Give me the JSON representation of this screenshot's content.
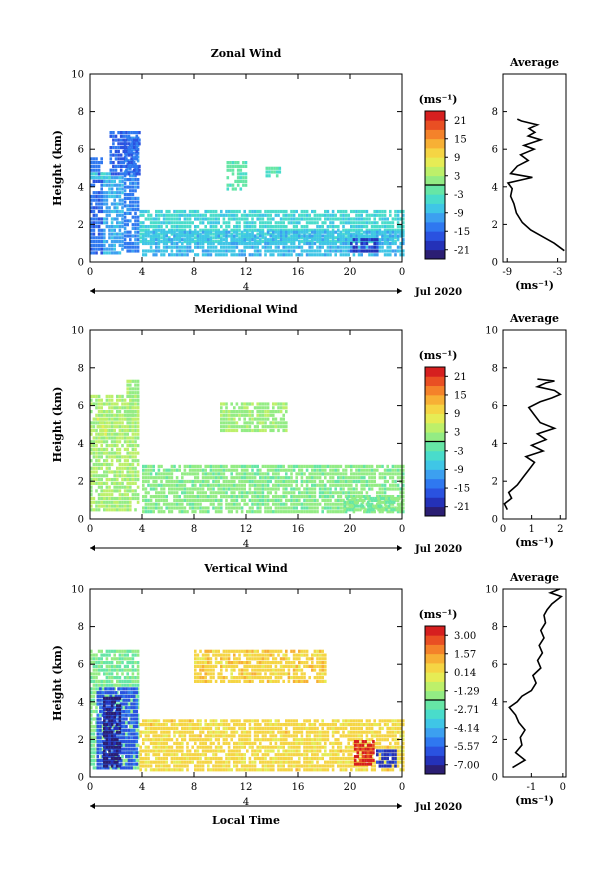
{
  "chart_data": [
    {
      "type": "heatmap",
      "title": "Zonal Wind",
      "ylabel": "Height (km)",
      "xlabel": "",
      "xlim": [
        0,
        24
      ],
      "ylim": [
        0,
        10
      ],
      "xticks": [
        "0",
        "4",
        "8",
        "12",
        "16",
        "20",
        "0"
      ],
      "yticks": [
        "0",
        "2",
        "4",
        "6",
        "8",
        "10"
      ],
      "date_scale_label": "4",
      "date_label": "Jul 2020",
      "colorbar": {
        "unit": "(ms⁻¹)",
        "ticks": [
          "21",
          "15",
          "9",
          "3",
          "-3",
          "-9",
          "-15",
          "-21"
        ],
        "min": -24,
        "max": 24
      },
      "regions": [
        {
          "x": [
            0.0,
            1.0
          ],
          "y": [
            0.4,
            5.6
          ],
          "value": -14
        },
        {
          "x": [
            1.0,
            2.6
          ],
          "y": [
            0.4,
            4.5
          ],
          "value": -10
        },
        {
          "x": [
            2.6,
            3.8
          ],
          "y": [
            0.5,
            6.6
          ],
          "value": -13
        },
        {
          "x": [
            1.5,
            3.9
          ],
          "y": [
            4.6,
            6.9
          ],
          "value": -15
        },
        {
          "x": [
            0.0,
            1.5
          ],
          "y": [
            4.4,
            4.7
          ],
          "value": -6
        },
        {
          "x": [
            3.8,
            24.0
          ],
          "y": [
            1.0,
            2.8
          ],
          "value": -5
        },
        {
          "x": [
            4.0,
            24.0
          ],
          "y": [
            0.3,
            1.5
          ],
          "value": -8
        },
        {
          "x": [
            10.5,
            12.0
          ],
          "y": [
            3.8,
            5.4
          ],
          "value": -2
        },
        {
          "x": [
            13.5,
            14.5
          ],
          "y": [
            4.5,
            5.0
          ],
          "value": -3
        },
        {
          "x": [
            20.0,
            22.0
          ],
          "y": [
            0.5,
            1.2
          ],
          "value": -19
        }
      ],
      "profile": {
        "title": "Average",
        "xlabel": "(ms⁻¹)",
        "ylabel": "",
        "xlim": [
          -9.5,
          -2
        ],
        "xticks": [
          "-9",
          "-3"
        ],
        "ylim": [
          0,
          10
        ],
        "yticks": [
          "0",
          "2",
          "4",
          "6",
          "8"
        ],
        "x": [
          -2.2,
          -3.4,
          -4.6,
          -6.2,
          -7.2,
          -7.9,
          -8.2,
          -8.6,
          -8.4,
          -8.9,
          -6.0,
          -8.6,
          -7.8,
          -6.5,
          -7.4,
          -5.8,
          -7.0,
          -5.0,
          -6.5,
          -5.7,
          -6.4,
          -5.4,
          -7.3,
          -7.8
        ],
        "y": [
          0.6,
          1.0,
          1.3,
          1.7,
          2.1,
          2.6,
          3.1,
          3.5,
          3.9,
          4.2,
          4.5,
          4.7,
          5.1,
          5.4,
          5.7,
          6.0,
          6.2,
          6.5,
          6.7,
          6.9,
          7.1,
          7.3,
          7.5,
          7.6
        ]
      }
    },
    {
      "type": "heatmap",
      "title": "Meridional Wind",
      "ylabel": "Height (km)",
      "xlabel": "",
      "xlim": [
        0,
        24
      ],
      "ylim": [
        0,
        10
      ],
      "xticks": [
        "0",
        "4",
        "8",
        "12",
        "16",
        "20",
        "0"
      ],
      "yticks": [
        "0",
        "2",
        "4",
        "6",
        "8",
        "10"
      ],
      "date_scale_label": "4",
      "date_label": "Jul 2020",
      "colorbar": {
        "unit": "(ms⁻¹)",
        "ticks": [
          "21",
          "15",
          "9",
          "3",
          "-3",
          "-9",
          "-15",
          "-21"
        ],
        "min": -24,
        "max": 24
      },
      "regions": [
        {
          "x": [
            0.0,
            3.8
          ],
          "y": [
            0.4,
            6.5
          ],
          "value": 3
        },
        {
          "x": [
            0.5,
            1.2
          ],
          "y": [
            4.4,
            5.4
          ],
          "value": 6
        },
        {
          "x": [
            2.8,
            3.8
          ],
          "y": [
            5.2,
            7.3
          ],
          "value": 2
        },
        {
          "x": [
            4.0,
            24.0
          ],
          "y": [
            0.3,
            2.8
          ],
          "value": 1
        },
        {
          "x": [
            10.0,
            15.0
          ],
          "y": [
            4.6,
            6.1
          ],
          "value": 2
        },
        {
          "x": [
            19.5,
            24.0
          ],
          "y": [
            0.4,
            1.2
          ],
          "value": 0
        }
      ],
      "profile": {
        "title": "Average",
        "xlabel": "(ms⁻¹)",
        "ylabel": "",
        "xlim": [
          0,
          2.2
        ],
        "xticks": [
          "0",
          "1",
          "2"
        ],
        "ylim": [
          0,
          10
        ],
        "yticks": [
          "0",
          "2",
          "4",
          "6",
          "8",
          "10"
        ],
        "x": [
          0.15,
          0.05,
          0.3,
          0.2,
          0.5,
          0.7,
          0.9,
          1.1,
          0.8,
          1.4,
          1.0,
          1.5,
          1.2,
          1.8,
          1.3,
          1.1,
          0.9,
          1.3,
          1.7,
          2.0,
          1.8,
          1.2,
          1.5,
          1.8,
          1.2
        ],
        "y": [
          0.5,
          0.8,
          1.1,
          1.4,
          1.8,
          2.2,
          2.6,
          3.0,
          3.3,
          3.6,
          3.9,
          4.2,
          4.5,
          4.8,
          5.1,
          5.5,
          5.9,
          6.2,
          6.4,
          6.6,
          6.8,
          7.0,
          7.2,
          7.3,
          7.4
        ]
      }
    },
    {
      "type": "heatmap",
      "title": "Vertical Wind",
      "ylabel": "Height (km)",
      "xlabel": "Local Time",
      "xlim": [
        0,
        24
      ],
      "ylim": [
        0,
        10
      ],
      "xticks": [
        "0",
        "4",
        "8",
        "12",
        "16",
        "20",
        "0"
      ],
      "yticks": [
        "0",
        "2",
        "4",
        "6",
        "8",
        "10"
      ],
      "date_scale_label": "4",
      "date_label": "Jul 2020",
      "colorbar": {
        "unit": "(ms⁻¹)",
        "ticks": [
          "3.00",
          "1.57",
          "0.14",
          "-1.29",
          "-2.71",
          "-4.14",
          "-5.57",
          "-7.00"
        ],
        "min": -7.7,
        "max": 3.7
      },
      "regions": [
        {
          "x": [
            0.0,
            3.8
          ],
          "y": [
            0.4,
            6.8
          ],
          "value": -2.0
        },
        {
          "x": [
            0.5,
            3.6
          ],
          "y": [
            0.4,
            4.8
          ],
          "value": -5.8
        },
        {
          "x": [
            1.0,
            2.2
          ],
          "y": [
            0.5,
            4.3
          ],
          "value": -7.2
        },
        {
          "x": [
            3.8,
            24.0
          ],
          "y": [
            0.3,
            3.0
          ],
          "value": 0.4
        },
        {
          "x": [
            8.0,
            18.0
          ],
          "y": [
            5.0,
            6.8
          ],
          "value": 0.5
        },
        {
          "x": [
            20.3,
            21.8
          ],
          "y": [
            0.6,
            1.8
          ],
          "value": 3.3
        },
        {
          "x": [
            22.0,
            23.5
          ],
          "y": [
            0.5,
            1.3
          ],
          "value": -6.5
        }
      ],
      "profile": {
        "title": "Average",
        "xlabel": "(ms⁻¹)",
        "ylabel": "",
        "xlim": [
          -1.9,
          0.1
        ],
        "xticks": [
          "-1",
          "0"
        ],
        "ylim": [
          0,
          10
        ],
        "yticks": [
          "0",
          "2",
          "4",
          "6",
          "8",
          "10"
        ],
        "x": [
          -1.6,
          -1.2,
          -1.5,
          -1.3,
          -1.35,
          -1.2,
          -1.4,
          -1.5,
          -1.7,
          -1.45,
          -1.3,
          -1.0,
          -0.85,
          -0.95,
          -0.7,
          -0.8,
          -0.65,
          -0.75,
          -0.6,
          -0.7,
          -0.55,
          -0.6,
          -0.5,
          -0.35,
          -0.2,
          -0.05,
          -0.4,
          -0.1
        ],
        "y": [
          0.5,
          0.9,
          1.3,
          1.7,
          2.1,
          2.5,
          2.9,
          3.3,
          3.7,
          4.0,
          4.3,
          4.6,
          5.0,
          5.4,
          5.8,
          6.2,
          6.6,
          7.0,
          7.4,
          7.8,
          8.2,
          8.6,
          8.9,
          9.2,
          9.4,
          9.6,
          9.8,
          10.0
        ]
      }
    }
  ]
}
